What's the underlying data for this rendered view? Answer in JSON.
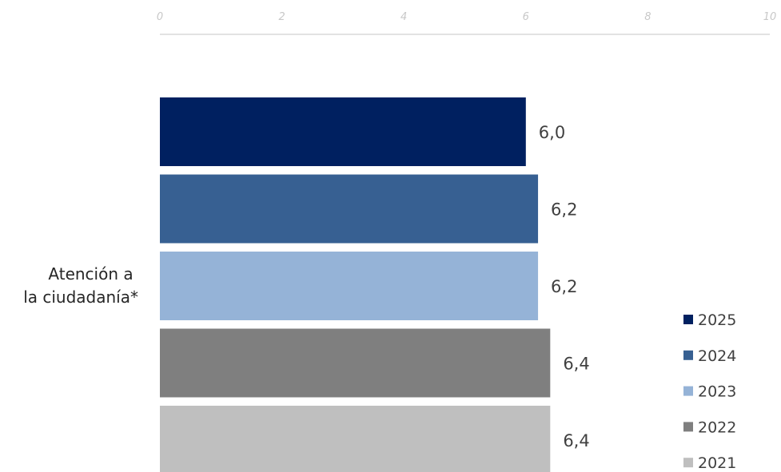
{
  "chart_data": {
    "type": "bar",
    "orientation": "horizontal",
    "title": "",
    "xlabel": "",
    "ylabel": "",
    "xlim": [
      0,
      10
    ],
    "x_ticks": [
      0,
      2,
      4,
      6,
      8,
      10
    ],
    "x_tick_labels": [
      "0",
      "2",
      "4",
      "6",
      "8",
      "10"
    ],
    "axis_position": "top",
    "grid": false,
    "legend_position": "bottom-right",
    "categories": [
      "Atención a la ciudadanía*"
    ],
    "category_label_lines": [
      "Atención a",
      "la ciudadanía*"
    ],
    "series": [
      {
        "name": "2025",
        "values": [
          6.0
        ],
        "label": "6,0",
        "color": "#002060"
      },
      {
        "name": "2024",
        "values": [
          6.2
        ],
        "label": "6,2",
        "color": "#376092"
      },
      {
        "name": "2023",
        "values": [
          6.2
        ],
        "label": "6,2",
        "color": "#95B3D7"
      },
      {
        "name": "2022",
        "values": [
          6.4
        ],
        "label": "6,4",
        "color": "#7F7F7F"
      },
      {
        "name": "2021",
        "values": [
          6.4
        ],
        "label": "6,4",
        "color": "#BFBFBF"
      }
    ]
  }
}
